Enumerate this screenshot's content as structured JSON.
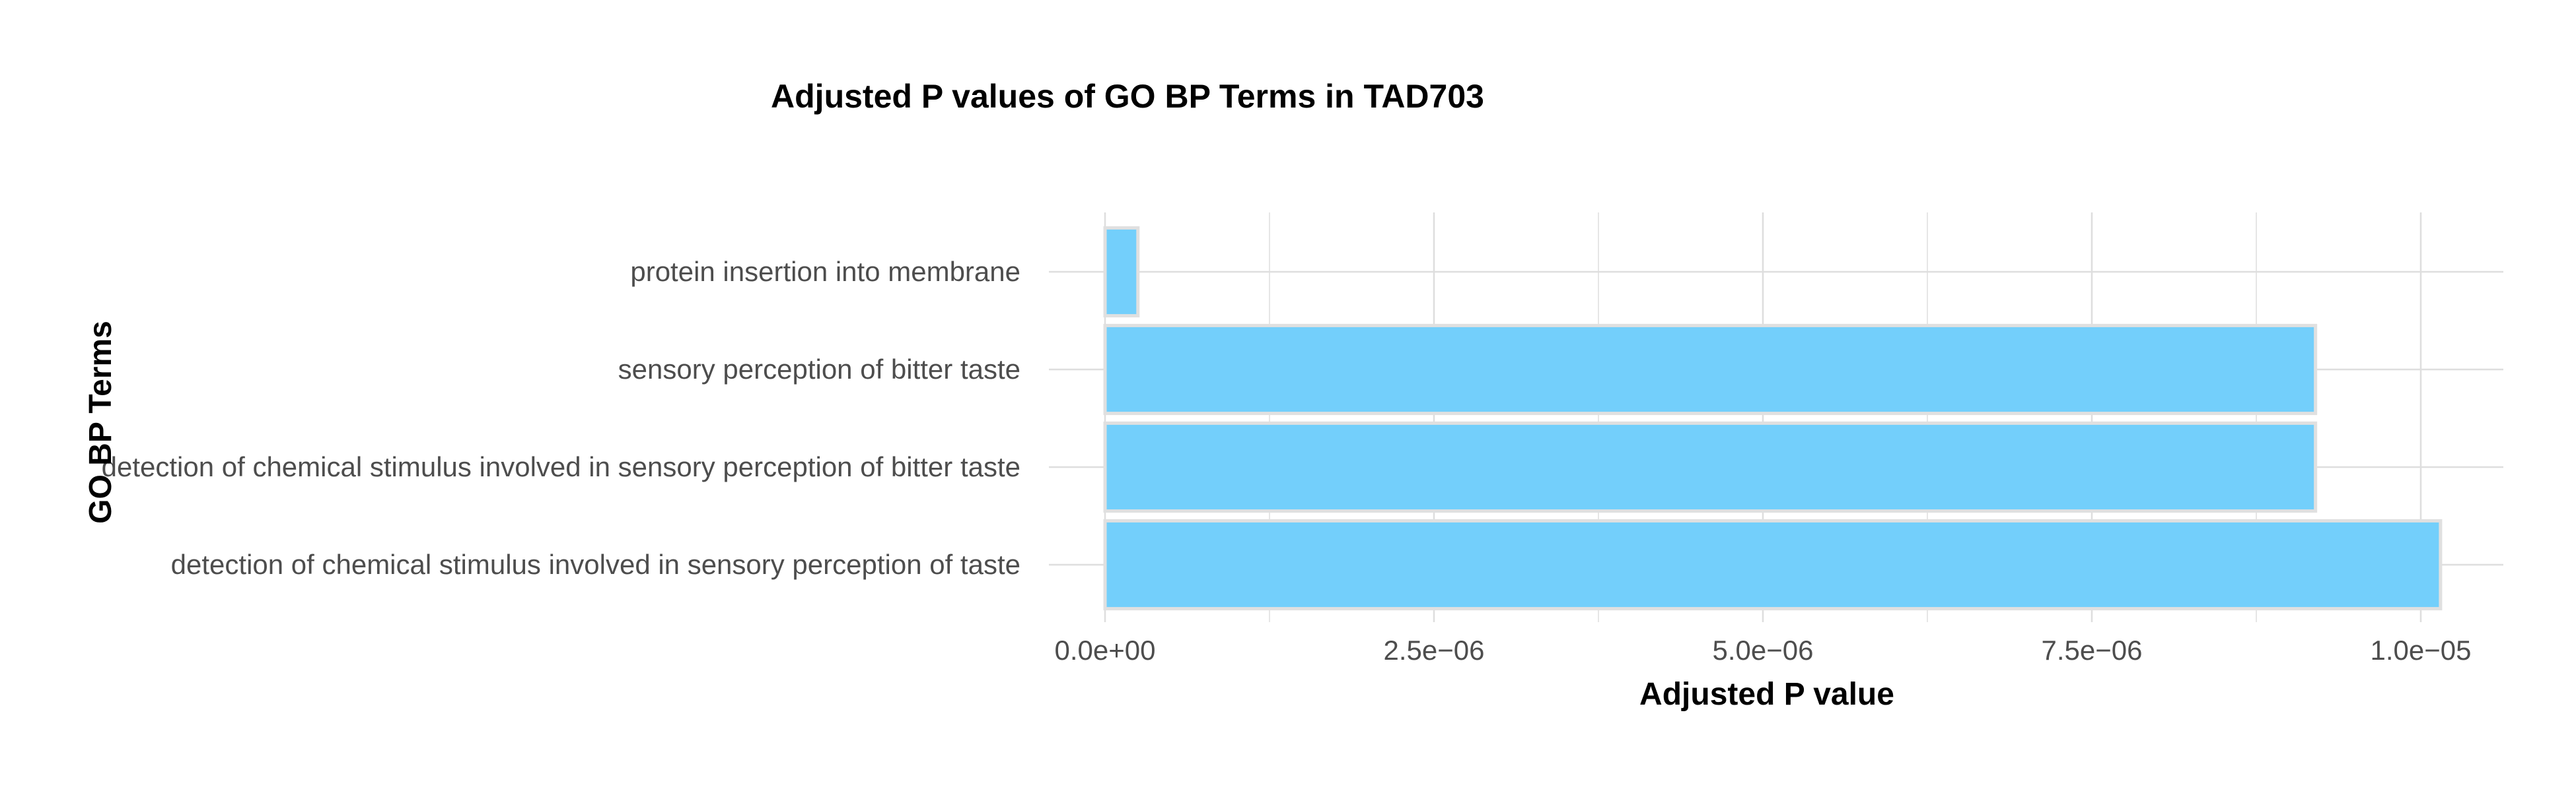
{
  "chart_data": {
    "type": "bar",
    "orientation": "horizontal",
    "title": "Adjusted P values of GO BP Terms in TAD703",
    "xlabel": "Adjusted P value",
    "ylabel": "GO BP Terms",
    "categories": [
      "protein insertion into membrane",
      "sensory perception of bitter taste",
      "detection of chemical stimulus involved in sensory perception of bitter taste",
      "detection of chemical stimulus involved in sensory perception of taste"
    ],
    "values": [
      2.5e-07,
      9.2e-06,
      9.2e-06,
      1.015e-05
    ],
    "xlim": [
      0,
      1.065e-05
    ],
    "xticks": [
      0,
      2.5e-06,
      5e-06,
      7.5e-06,
      1e-05
    ],
    "xtick_labels": [
      "0.0e+00",
      "2.5e−06",
      "5.0e−06",
      "7.5e−06",
      "1.0e−05"
    ],
    "bar_color": "#73cffb",
    "bar_outline_color": "#e0e0e0",
    "grid": true,
    "grid_color": "#dedede",
    "background_color": "#ffffff"
  }
}
